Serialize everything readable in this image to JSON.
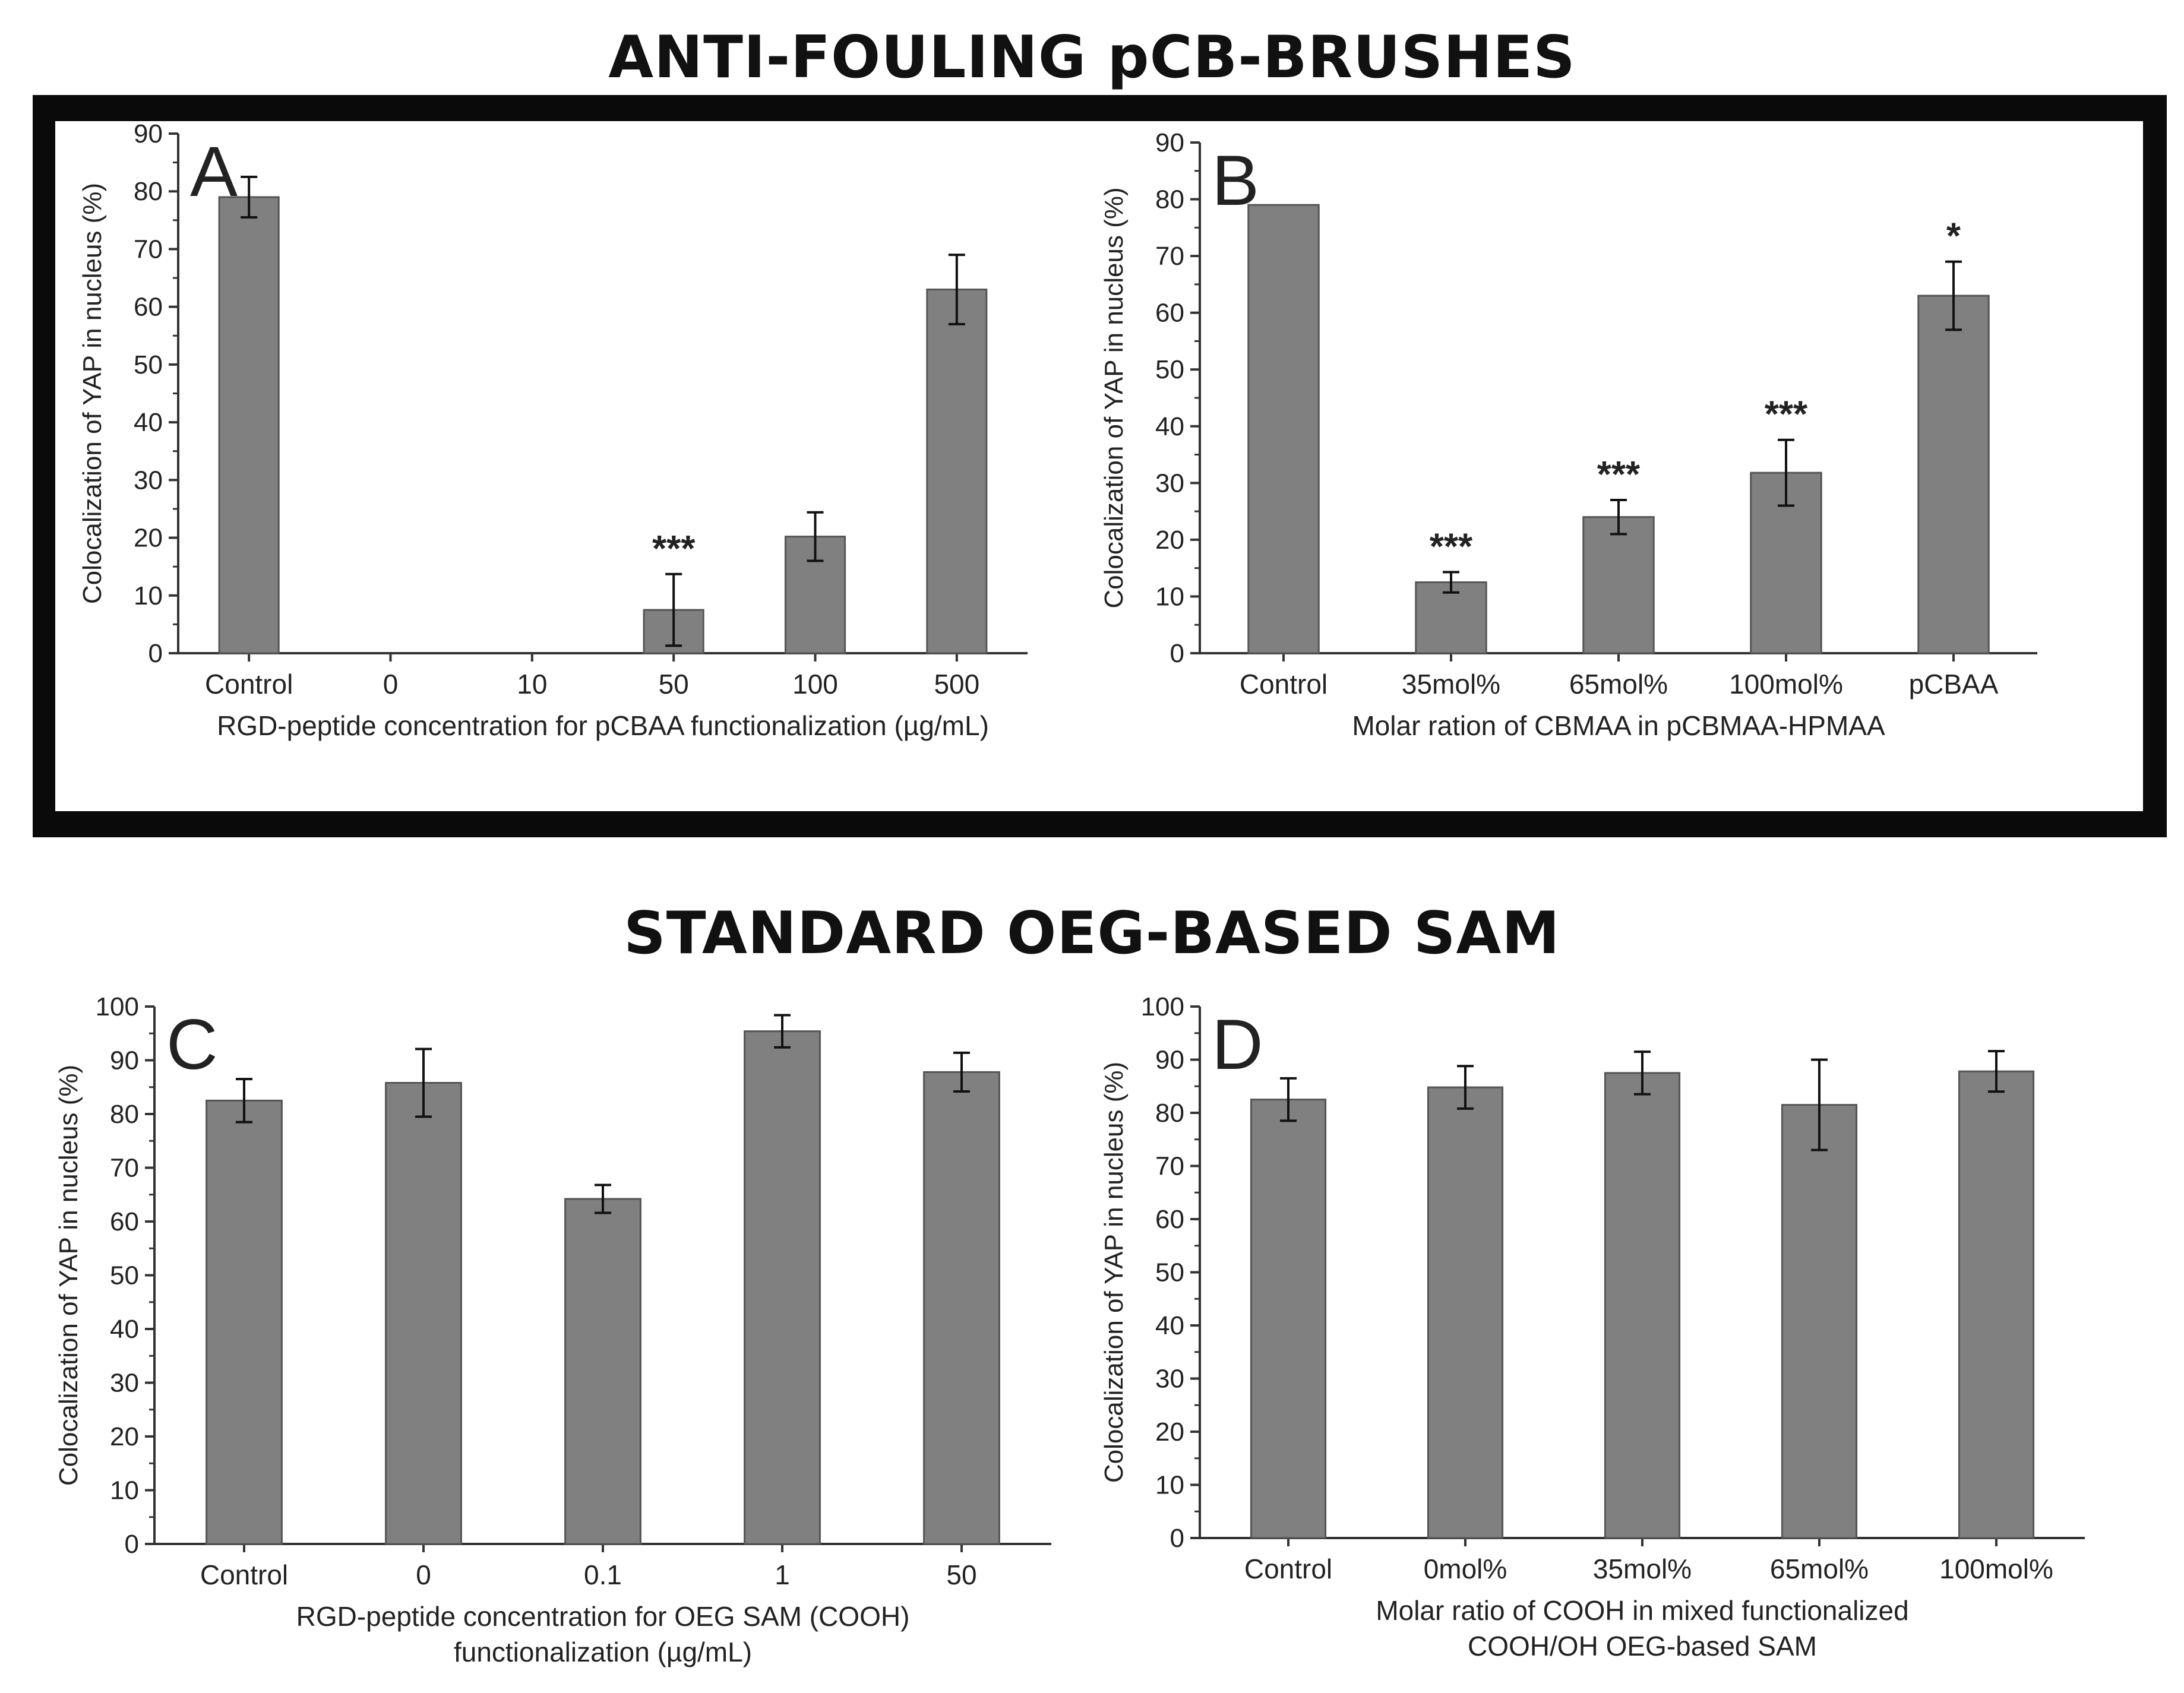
{
  "titles": {
    "top": "ANTI-FOULING pCB-BRUSHES",
    "bottom": "STANDARD OEG-BASED SAM"
  },
  "colors": {
    "bar": "#808080",
    "frame": "#0a0a0a",
    "axis": "#333333"
  },
  "chart_data": [
    {
      "id": "A",
      "panel_label": "A",
      "type": "bar",
      "title": "",
      "ylabel": "Colocalization of YAP in nucleus (%)",
      "xlabel": [
        "RGD-peptide concentration for pCBAA functionalization (µg/mL)"
      ],
      "ylim": [
        0,
        90
      ],
      "yticks": [
        0,
        10,
        20,
        30,
        40,
        50,
        60,
        70,
        80,
        90
      ],
      "categories": [
        "Control",
        "0",
        "10",
        "50",
        "100",
        "500"
      ],
      "values": [
        79,
        0,
        0,
        7.5,
        20.2,
        63
      ],
      "errors": [
        3.5,
        null,
        null,
        6.2,
        4.2,
        6
      ],
      "annotations": [
        "",
        "",
        "",
        "***",
        "",
        ""
      ]
    },
    {
      "id": "B",
      "panel_label": "B",
      "type": "bar",
      "title": "",
      "ylabel": "Colocalization of YAP in nucleus (%)",
      "xlabel": [
        "Molar ration of CBMAA in pCBMAA-HPMAA"
      ],
      "ylim": [
        0,
        90
      ],
      "yticks": [
        0,
        10,
        20,
        30,
        40,
        50,
        60,
        70,
        80,
        90
      ],
      "categories": [
        "Control",
        "35mol%",
        "65mol%",
        "100mol%",
        "pCBAA"
      ],
      "values": [
        79,
        12.5,
        24,
        31.8,
        63
      ],
      "errors": [
        null,
        1.8,
        3,
        5.8,
        6
      ],
      "annotations": [
        "",
        "***",
        "***",
        "***",
        "*"
      ]
    },
    {
      "id": "C",
      "panel_label": "C",
      "type": "bar",
      "title": "",
      "ylabel": "Colocalization of YAP in nucleus (%)",
      "xlabel": [
        "RGD-peptide concentration for OEG SAM (COOH)",
        "functionalization (µg/mL)"
      ],
      "ylim": [
        0,
        100
      ],
      "yticks": [
        0,
        10,
        20,
        30,
        40,
        50,
        60,
        70,
        80,
        90,
        100
      ],
      "categories": [
        "Control",
        "0",
        "0.1",
        "1",
        "50"
      ],
      "values": [
        82.5,
        85.8,
        64.2,
        95.4,
        87.8
      ],
      "errors": [
        4,
        6.3,
        2.6,
        3,
        3.6
      ],
      "annotations": [
        "",
        "",
        "",
        "",
        ""
      ]
    },
    {
      "id": "D",
      "panel_label": "D",
      "type": "bar",
      "title": "",
      "ylabel": "Colocalization of YAP in nucleus (%)",
      "xlabel": [
        "Molar ratio of COOH in mixed functionalized",
        "COOH/OH OEG-based SAM"
      ],
      "ylim": [
        0,
        100
      ],
      "yticks": [
        0,
        10,
        20,
        30,
        40,
        50,
        60,
        70,
        80,
        90,
        100
      ],
      "categories": [
        "Control",
        "0mol%",
        "35mol%",
        "65mol%",
        "100mol%"
      ],
      "values": [
        82.5,
        84.8,
        87.5,
        81.5,
        87.8
      ],
      "errors": [
        4,
        4,
        4,
        8.5,
        3.8
      ],
      "annotations": [
        "",
        "",
        "",
        "",
        ""
      ]
    }
  ]
}
